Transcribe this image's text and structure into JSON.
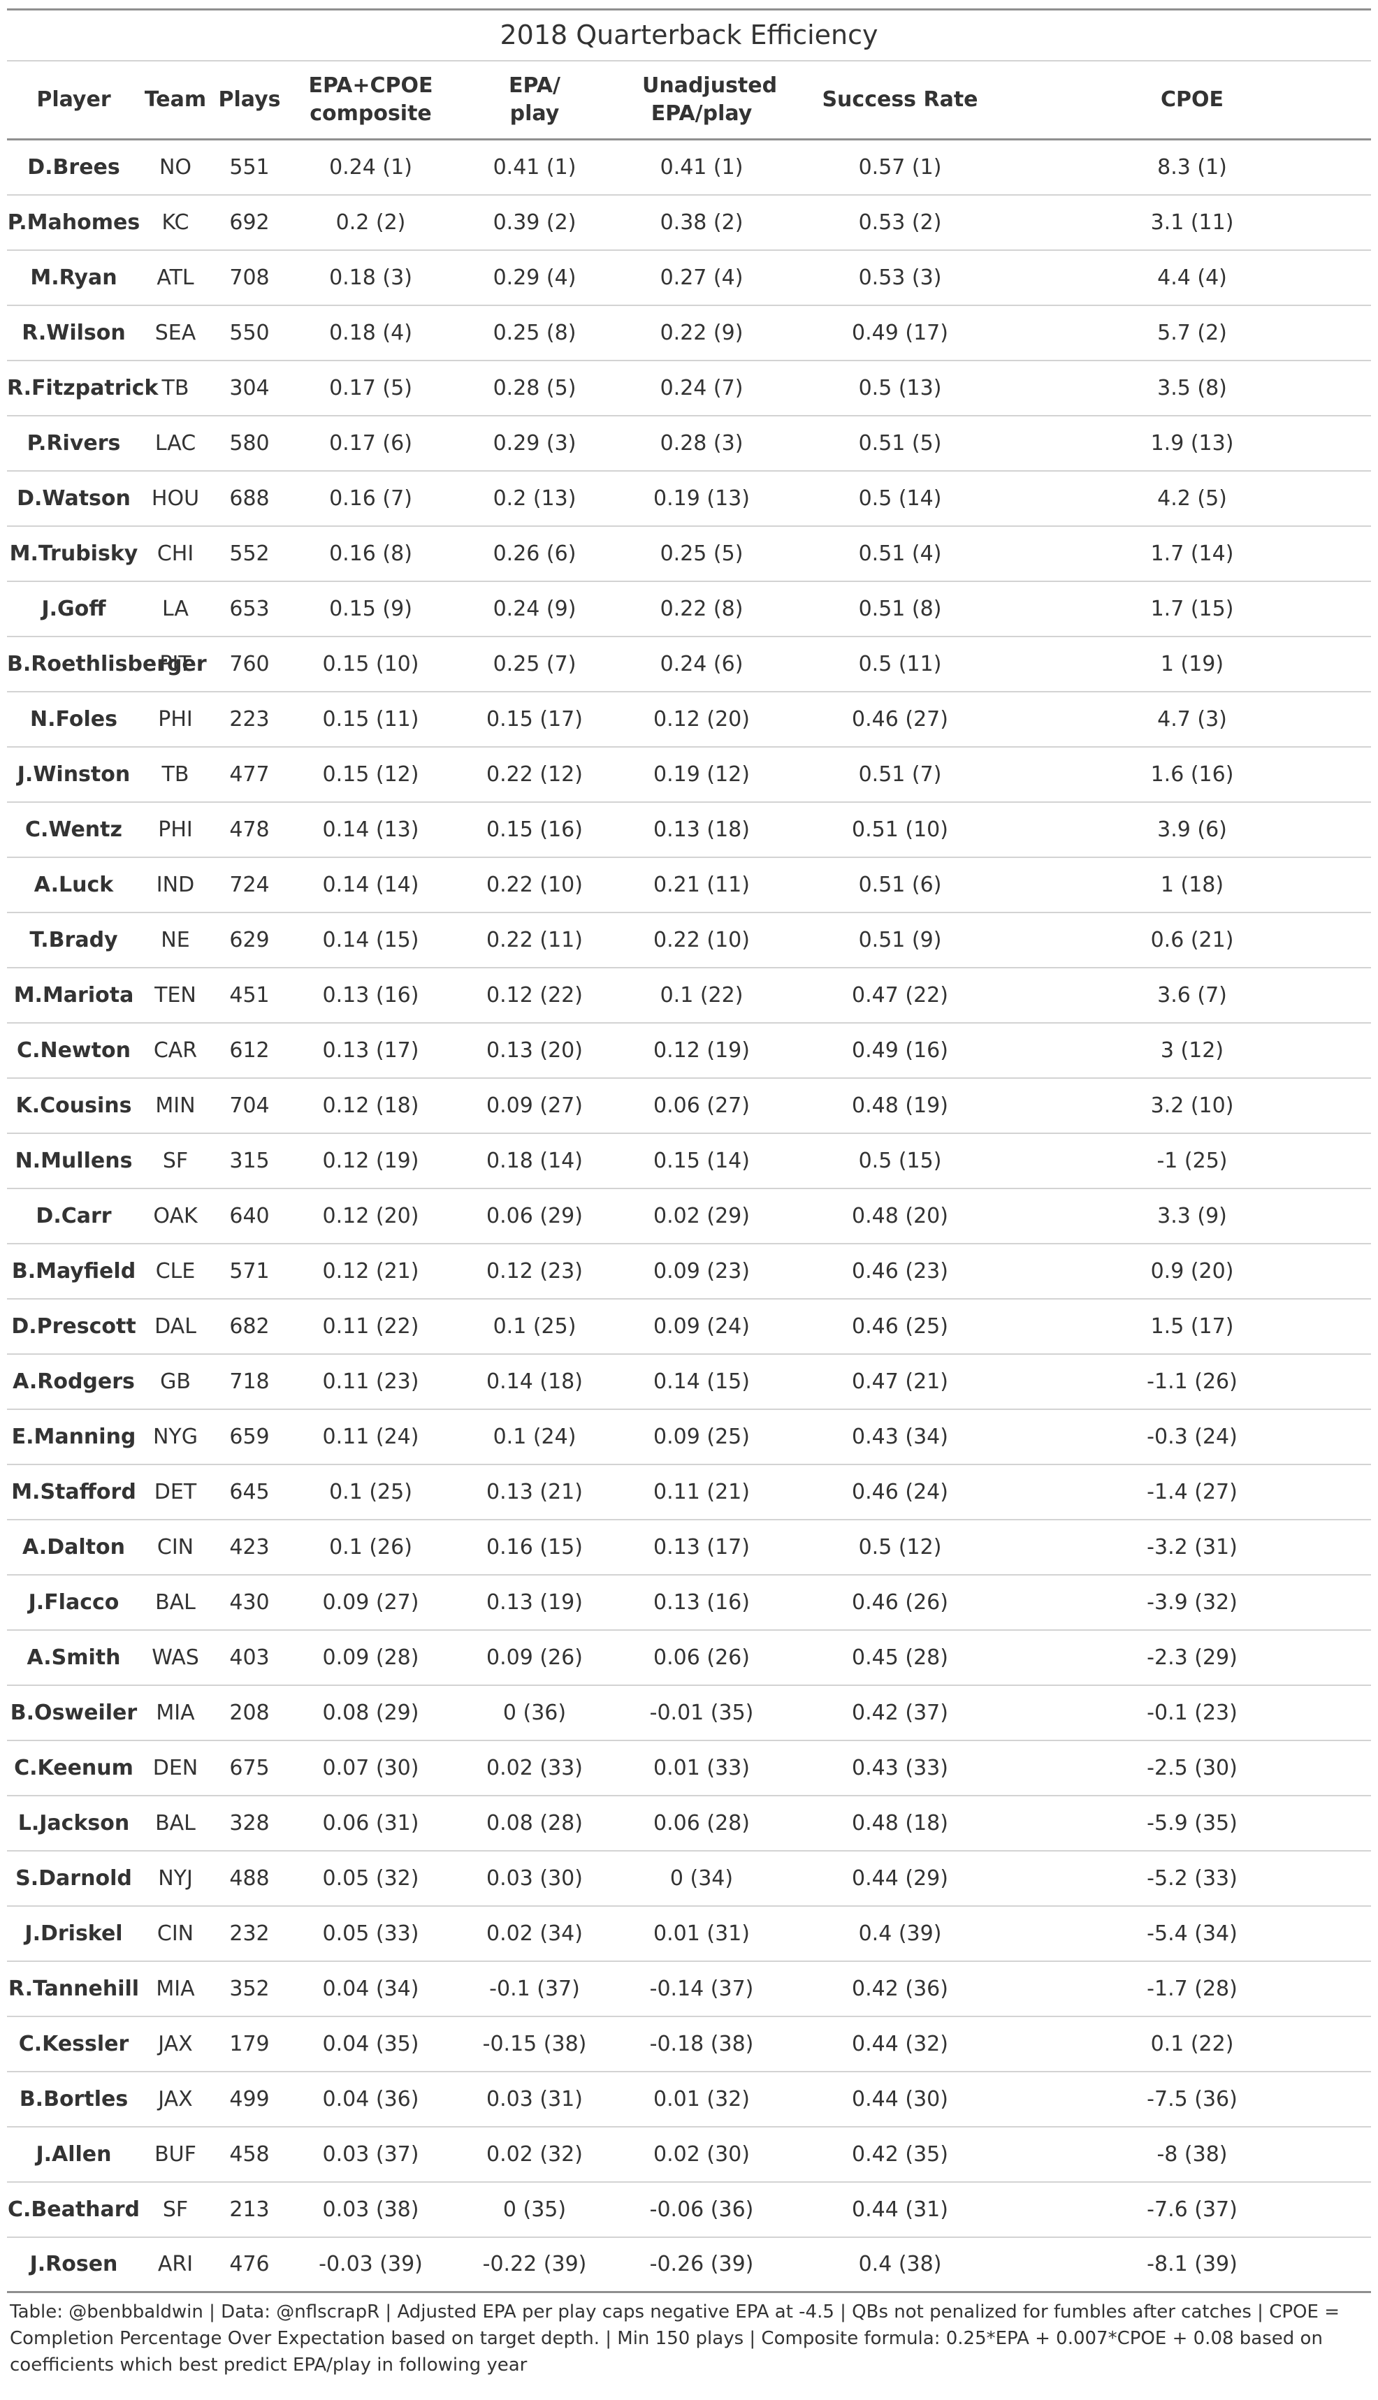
{
  "title": "2018 Quarterback Efficiency",
  "columns": [
    "Player",
    "Team",
    "Plays",
    "EPA+CPOE composite",
    "EPA/ play",
    "Unadjusted EPA/play",
    "Success Rate",
    "CPOE"
  ],
  "rows": [
    [
      "D.Brees",
      "NO",
      "551",
      "0.24 (1)",
      "0.41 (1)",
      "0.41 (1)",
      "0.57 (1)",
      "8.3 (1)"
    ],
    [
      "P.Mahomes",
      "KC",
      "692",
      "0.2 (2)",
      "0.39 (2)",
      "0.38 (2)",
      "0.53 (2)",
      "3.1 (11)"
    ],
    [
      "M.Ryan",
      "ATL",
      "708",
      "0.18 (3)",
      "0.29 (4)",
      "0.27 (4)",
      "0.53 (3)",
      "4.4 (4)"
    ],
    [
      "R.Wilson",
      "SEA",
      "550",
      "0.18 (4)",
      "0.25 (8)",
      "0.22 (9)",
      "0.49 (17)",
      "5.7 (2)"
    ],
    [
      "R.Fitzpatrick",
      "TB",
      "304",
      "0.17 (5)",
      "0.28 (5)",
      "0.24 (7)",
      "0.5 (13)",
      "3.5 (8)"
    ],
    [
      "P.Rivers",
      "LAC",
      "580",
      "0.17 (6)",
      "0.29 (3)",
      "0.28 (3)",
      "0.51 (5)",
      "1.9 (13)"
    ],
    [
      "D.Watson",
      "HOU",
      "688",
      "0.16 (7)",
      "0.2 (13)",
      "0.19 (13)",
      "0.5 (14)",
      "4.2 (5)"
    ],
    [
      "M.Trubisky",
      "CHI",
      "552",
      "0.16 (8)",
      "0.26 (6)",
      "0.25 (5)",
      "0.51 (4)",
      "1.7 (14)"
    ],
    [
      "J.Goff",
      "LA",
      "653",
      "0.15 (9)",
      "0.24 (9)",
      "0.22 (8)",
      "0.51 (8)",
      "1.7 (15)"
    ],
    [
      "B.Roethlisberger",
      "PIT",
      "760",
      "0.15 (10)",
      "0.25 (7)",
      "0.24 (6)",
      "0.5 (11)",
      "1 (19)"
    ],
    [
      "N.Foles",
      "PHI",
      "223",
      "0.15 (11)",
      "0.15 (17)",
      "0.12 (20)",
      "0.46 (27)",
      "4.7 (3)"
    ],
    [
      "J.Winston",
      "TB",
      "477",
      "0.15 (12)",
      "0.22 (12)",
      "0.19 (12)",
      "0.51 (7)",
      "1.6 (16)"
    ],
    [
      "C.Wentz",
      "PHI",
      "478",
      "0.14 (13)",
      "0.15 (16)",
      "0.13 (18)",
      "0.51 (10)",
      "3.9 (6)"
    ],
    [
      "A.Luck",
      "IND",
      "724",
      "0.14 (14)",
      "0.22 (10)",
      "0.21 (11)",
      "0.51 (6)",
      "1 (18)"
    ],
    [
      "T.Brady",
      "NE",
      "629",
      "0.14 (15)",
      "0.22 (11)",
      "0.22 (10)",
      "0.51 (9)",
      "0.6 (21)"
    ],
    [
      "M.Mariota",
      "TEN",
      "451",
      "0.13 (16)",
      "0.12 (22)",
      "0.1 (22)",
      "0.47 (22)",
      "3.6 (7)"
    ],
    [
      "C.Newton",
      "CAR",
      "612",
      "0.13 (17)",
      "0.13 (20)",
      "0.12 (19)",
      "0.49 (16)",
      "3 (12)"
    ],
    [
      "K.Cousins",
      "MIN",
      "704",
      "0.12 (18)",
      "0.09 (27)",
      "0.06 (27)",
      "0.48 (19)",
      "3.2 (10)"
    ],
    [
      "N.Mullens",
      "SF",
      "315",
      "0.12 (19)",
      "0.18 (14)",
      "0.15 (14)",
      "0.5 (15)",
      "-1 (25)"
    ],
    [
      "D.Carr",
      "OAK",
      "640",
      "0.12 (20)",
      "0.06 (29)",
      "0.02 (29)",
      "0.48 (20)",
      "3.3 (9)"
    ],
    [
      "B.Mayfield",
      "CLE",
      "571",
      "0.12 (21)",
      "0.12 (23)",
      "0.09 (23)",
      "0.46 (23)",
      "0.9 (20)"
    ],
    [
      "D.Prescott",
      "DAL",
      "682",
      "0.11 (22)",
      "0.1 (25)",
      "0.09 (24)",
      "0.46 (25)",
      "1.5 (17)"
    ],
    [
      "A.Rodgers",
      "GB",
      "718",
      "0.11 (23)",
      "0.14 (18)",
      "0.14 (15)",
      "0.47 (21)",
      "-1.1 (26)"
    ],
    [
      "E.Manning",
      "NYG",
      "659",
      "0.11 (24)",
      "0.1 (24)",
      "0.09 (25)",
      "0.43 (34)",
      "-0.3 (24)"
    ],
    [
      "M.Stafford",
      "DET",
      "645",
      "0.1 (25)",
      "0.13 (21)",
      "0.11 (21)",
      "0.46 (24)",
      "-1.4 (27)"
    ],
    [
      "A.Dalton",
      "CIN",
      "423",
      "0.1 (26)",
      "0.16 (15)",
      "0.13 (17)",
      "0.5 (12)",
      "-3.2 (31)"
    ],
    [
      "J.Flacco",
      "BAL",
      "430",
      "0.09 (27)",
      "0.13 (19)",
      "0.13 (16)",
      "0.46 (26)",
      "-3.9 (32)"
    ],
    [
      "A.Smith",
      "WAS",
      "403",
      "0.09 (28)",
      "0.09 (26)",
      "0.06 (26)",
      "0.45 (28)",
      "-2.3 (29)"
    ],
    [
      "B.Osweiler",
      "MIA",
      "208",
      "0.08 (29)",
      "0 (36)",
      "-0.01 (35)",
      "0.42 (37)",
      "-0.1 (23)"
    ],
    [
      "C.Keenum",
      "DEN",
      "675",
      "0.07 (30)",
      "0.02 (33)",
      "0.01 (33)",
      "0.43 (33)",
      "-2.5 (30)"
    ],
    [
      "L.Jackson",
      "BAL",
      "328",
      "0.06 (31)",
      "0.08 (28)",
      "0.06 (28)",
      "0.48 (18)",
      "-5.9 (35)"
    ],
    [
      "S.Darnold",
      "NYJ",
      "488",
      "0.05 (32)",
      "0.03 (30)",
      "0 (34)",
      "0.44 (29)",
      "-5.2 (33)"
    ],
    [
      "J.Driskel",
      "CIN",
      "232",
      "0.05 (33)",
      "0.02 (34)",
      "0.01 (31)",
      "0.4 (39)",
      "-5.4 (34)"
    ],
    [
      "R.Tannehill",
      "MIA",
      "352",
      "0.04 (34)",
      "-0.1 (37)",
      "-0.14 (37)",
      "0.42 (36)",
      "-1.7 (28)"
    ],
    [
      "C.Kessler",
      "JAX",
      "179",
      "0.04 (35)",
      "-0.15 (38)",
      "-0.18 (38)",
      "0.44 (32)",
      "0.1 (22)"
    ],
    [
      "B.Bortles",
      "JAX",
      "499",
      "0.04 (36)",
      "0.03 (31)",
      "0.01 (32)",
      "0.44 (30)",
      "-7.5 (36)"
    ],
    [
      "J.Allen",
      "BUF",
      "458",
      "0.03 (37)",
      "0.02 (32)",
      "0.02 (30)",
      "0.42 (35)",
      "-8 (38)"
    ],
    [
      "C.Beathard",
      "SF",
      "213",
      "0.03 (38)",
      "0 (35)",
      "-0.06 (36)",
      "0.44 (31)",
      "-7.6 (37)"
    ],
    [
      "J.Rosen",
      "ARI",
      "476",
      "-0.03 (39)",
      "-0.22 (39)",
      "-0.26 (39)",
      "0.4 (38)",
      "-8.1 (39)"
    ]
  ],
  "footnote": "Table: @benbbaldwin | Data: @nflscrapR | Adjusted EPA per play caps negative EPA at -4.5 | QBs not penalized for fumbles after catches | CPOE = Completion Percentage Over Expectation based on target depth. | Min 150 plays | Composite formula: 0.25*EPA + 0.007*CPOE + 0.08 based on coefficients which best predict EPA/play in following year"
}
